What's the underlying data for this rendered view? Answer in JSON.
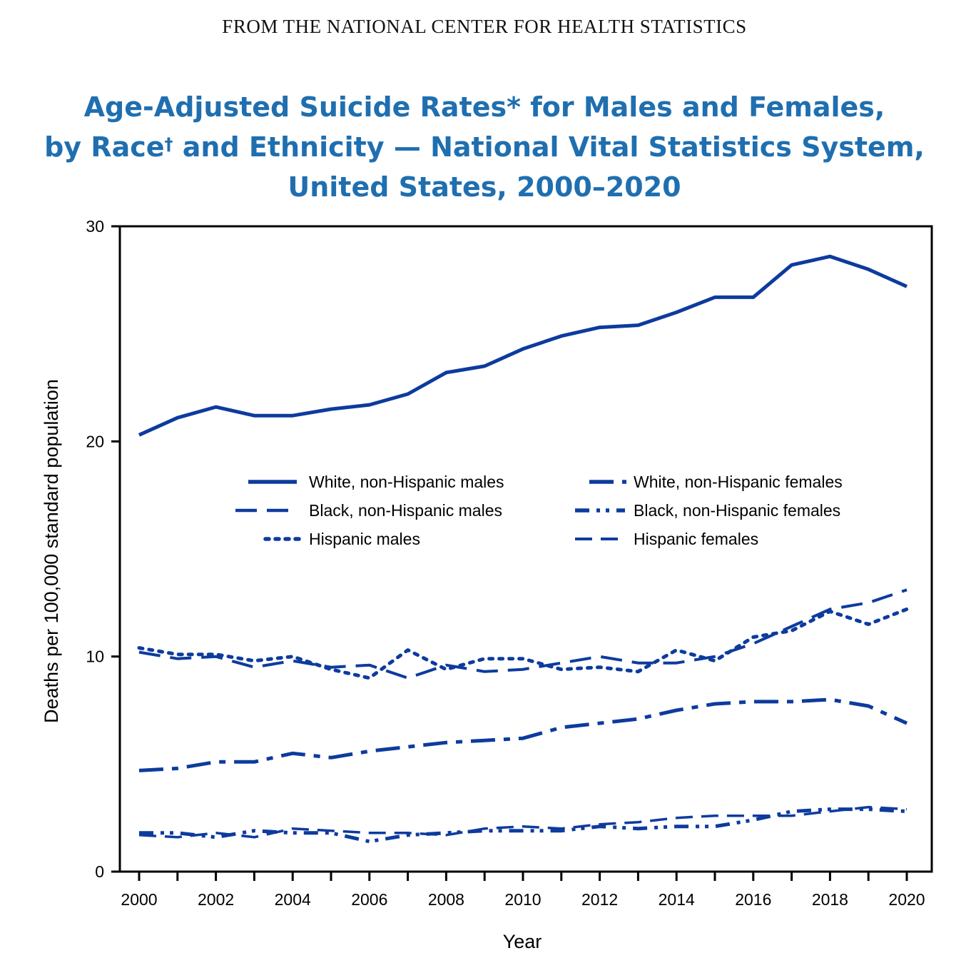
{
  "header": "FROM THE NATIONAL CENTER FOR HEALTH STATISTICS",
  "title": {
    "line1": "Age-Adjusted Suicide Rates* for Males and Females,",
    "line2_a": "by Race",
    "line2_sup": "†",
    "line2_b": " and Ethnicity —  National Vital Statistics System,",
    "line3": "United States, 2000–2020"
  },
  "colors": {
    "series": "#0d3b9e",
    "title": "#1f6fb0",
    "axis": "#000000"
  },
  "chart_data": {
    "type": "line",
    "xlabel": "Year",
    "ylabel": "Deaths per 100,000 standard  population",
    "ylim": [
      0,
      30
    ],
    "yticks": [
      0,
      10,
      20,
      30
    ],
    "xlim": [
      2000,
      2020
    ],
    "xticks": [
      2000,
      2002,
      2004,
      2006,
      2008,
      2010,
      2012,
      2014,
      2016,
      2018,
      2020
    ],
    "grid": false,
    "legend_position": "upper middle, two columns",
    "x": [
      2000,
      2001,
      2002,
      2003,
      2004,
      2005,
      2006,
      2007,
      2008,
      2009,
      2010,
      2011,
      2012,
      2013,
      2014,
      2015,
      2016,
      2017,
      2018,
      2019,
      2020
    ],
    "series": [
      {
        "name": "White, non-Hispanic males",
        "style": "solid",
        "values": [
          20.3,
          21.1,
          21.6,
          21.2,
          21.2,
          21.5,
          21.7,
          22.2,
          23.2,
          23.5,
          24.3,
          24.9,
          25.3,
          25.4,
          26.0,
          26.7,
          26.7,
          28.2,
          28.6,
          28.0,
          27.2
        ]
      },
      {
        "name": "White, non-Hispanic females",
        "style": "long-dash-dot",
        "values": [
          4.7,
          4.8,
          5.1,
          5.1,
          5.5,
          5.3,
          5.6,
          5.8,
          6.0,
          6.1,
          6.2,
          6.7,
          6.9,
          7.1,
          7.5,
          7.8,
          7.9,
          7.9,
          8.0,
          7.7,
          6.9
        ]
      },
      {
        "name": "Black, non-Hispanic males",
        "style": "long-dash",
        "values": [
          10.2,
          9.9,
          10.0,
          9.5,
          9.8,
          9.5,
          9.6,
          9.0,
          9.6,
          9.3,
          9.4,
          9.7,
          10.0,
          9.7,
          9.7,
          10.0,
          10.6,
          11.4,
          12.2,
          12.5,
          13.1
        ]
      },
      {
        "name": "Black, non-Hispanic females",
        "style": "dash-dot-dot",
        "values": [
          1.8,
          1.8,
          1.6,
          1.9,
          1.8,
          1.8,
          1.4,
          1.7,
          1.8,
          1.9,
          1.9,
          1.9,
          2.1,
          2.0,
          2.1,
          2.1,
          2.4,
          2.8,
          2.9,
          2.9,
          2.8
        ]
      },
      {
        "name": "Hispanic males",
        "style": "dotted",
        "values": [
          10.4,
          10.1,
          10.1,
          9.8,
          10.0,
          9.4,
          9.0,
          10.3,
          9.4,
          9.9,
          9.9,
          9.4,
          9.5,
          9.3,
          10.3,
          9.8,
          10.9,
          11.2,
          12.1,
          11.5,
          12.2
        ]
      },
      {
        "name": "Hispanic females",
        "style": "medium-dash",
        "values": [
          1.7,
          1.6,
          1.8,
          1.6,
          2.0,
          1.9,
          1.8,
          1.8,
          1.7,
          2.0,
          2.1,
          2.0,
          2.2,
          2.3,
          2.5,
          2.6,
          2.6,
          2.6,
          2.8,
          3.0,
          2.9
        ]
      }
    ]
  }
}
